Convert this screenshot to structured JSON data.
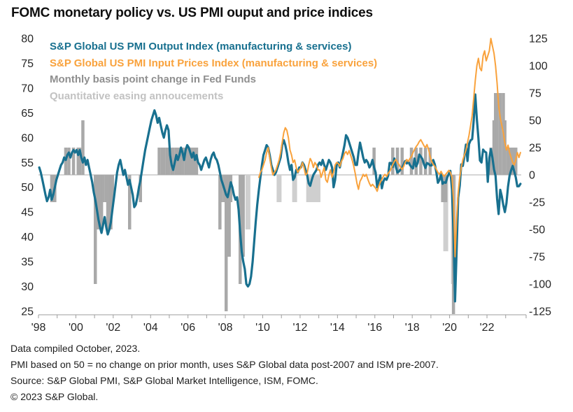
{
  "title": "FOMC monetary policy vs. US PMI ouput and price indices",
  "legend": [
    {
      "key": "pmi-output",
      "label": "S&P Global US PMI Output Index (manufacturing & services)",
      "color": "#18708F"
    },
    {
      "key": "pmi-input-prices",
      "label": "S&P Global US PMI Input Prices Index (manufacturing & services)",
      "color": "#F9A23C"
    },
    {
      "key": "fed-funds-change",
      "label": "Monthly basis point change in Fed Funds",
      "color": "#8F8F8F"
    },
    {
      "key": "qe-announcements",
      "label": "Quantitative easing annoucements",
      "color": "#C2C2C2"
    }
  ],
  "footer_lines": [
    "Data compiled October, 2023.",
    "PMI based on 50 = no change on prior month, uses S&P Global data post-2007 and ISM pre-2007.",
    "Source: S&P Global PMI, S&P Global Market Intelligence, ISM, FOMC.",
    "© 2023 S&P Global."
  ],
  "chart_data": {
    "type": "combo",
    "title": "FOMC monetary policy vs. US PMI ouput and price indices",
    "left_axis": {
      "min": 25,
      "max": 80,
      "ticks": [
        80,
        75,
        70,
        65,
        60,
        55,
        50,
        45,
        40,
        35,
        30,
        25
      ]
    },
    "right_axis": {
      "min": -125,
      "max": 125,
      "ticks": [
        125,
        100,
        75,
        50,
        25,
        0,
        -25,
        -50,
        -75,
        -100,
        -125
      ]
    },
    "x_axis": {
      "start_year": 1998,
      "end_year": 2023.83,
      "minor_tick_every_years": 1,
      "ticks": [
        {
          "label": "'98",
          "year": 1998
        },
        {
          "label": "'00",
          "year": 2000
        },
        {
          "label": "'02",
          "year": 2002
        },
        {
          "label": "'04",
          "year": 2004
        },
        {
          "label": "'06",
          "year": 2006
        },
        {
          "label": "'08",
          "year": 2008
        },
        {
          "label": "'10",
          "year": 2010
        },
        {
          "label": "'12",
          "year": 2012
        },
        {
          "label": "'14",
          "year": 2014
        },
        {
          "label": "'16",
          "year": 2016
        },
        {
          "label": "'18",
          "year": 2018
        },
        {
          "label": "'20",
          "year": 2020
        },
        {
          "label": "'22",
          "year": 2022
        }
      ]
    },
    "series": {
      "pmi_output": {
        "name": "S&P Global US PMI Output Index (manufacturing & services)",
        "kind": "line",
        "axis": "left",
        "color": "#18708F",
        "start": "1998-01",
        "values": [
          54.0,
          53.0,
          51.5,
          50.0,
          48.5,
          47.2,
          48.0,
          49.5,
          47.5,
          48.5,
          50.0,
          51.5,
          52.5,
          53.5,
          54.5,
          55.0,
          56.0,
          55.5,
          56.5,
          57.0,
          56.0,
          57.0,
          57.5,
          57.0,
          57.5,
          56.5,
          57.5,
          56.0,
          55.0,
          56.0,
          54.5,
          55.5,
          54.0,
          52.5,
          51.0,
          49.0,
          47.5,
          45.5,
          43.5,
          42.0,
          40.8,
          42.5,
          44.0,
          42.0,
          40.5,
          41.5,
          43.0,
          45.5,
          48.0,
          50.5,
          53.0,
          54.5,
          55.5,
          54.0,
          52.5,
          53.5,
          52.0,
          50.5,
          51.5,
          50.0,
          48.5,
          46.0,
          46.5,
          48.0,
          50.0,
          51.5,
          53.5,
          55.5,
          57.5,
          59.0,
          60.5,
          62.0,
          63.5,
          64.5,
          65.5,
          64.5,
          63.0,
          64.0,
          62.5,
          61.0,
          60.0,
          61.5,
          62.5,
          61.5,
          56.5,
          54.5,
          53.5,
          55.0,
          56.5,
          55.5,
          56.5,
          58.0,
          57.0,
          55.5,
          57.5,
          58.5,
          58.0,
          57.0,
          56.0,
          57.0,
          55.5,
          56.5,
          55.0,
          54.5,
          53.5,
          54.5,
          55.5,
          56.0,
          55.0,
          54.0,
          55.5,
          56.5,
          57.0,
          56.0,
          55.5,
          54.5,
          53.0,
          51.5,
          50.5,
          49.5,
          48.5,
          48.0,
          49.5,
          51.0,
          50.0,
          48.5,
          47.5,
          48.0,
          45.5,
          41.0,
          37.0,
          35.0,
          33.5,
          30.5,
          30.0,
          30.5,
          32.0,
          35.0,
          39.0,
          43.0,
          46.5,
          49.5,
          52.0,
          54.5,
          56.5,
          57.5,
          58.5,
          58.0,
          56.5,
          54.5,
          53.5,
          52.5,
          53.0,
          54.0,
          55.0,
          56.0,
          58.5,
          59.5,
          58.5,
          57.0,
          55.0,
          53.5,
          54.5,
          51.5,
          52.0,
          53.5,
          53.0,
          54.0,
          54.0,
          55.0,
          54.5,
          53.5,
          52.5,
          50.8,
          50.3,
          51.5,
          52.5,
          53.0,
          53.5,
          54.5,
          55.0,
          54.5,
          55.5,
          54.5,
          53.5,
          54.5,
          55.5,
          55.0,
          54.0,
          50.0,
          51.5,
          54.5,
          55.0,
          54.0,
          55.5,
          57.0,
          58.5,
          60.5,
          60.0,
          59.0,
          58.0,
          57.0,
          56.0,
          54.5,
          54.5,
          57.0,
          59.0,
          57.5,
          56.0,
          55.0,
          55.5,
          55.0,
          54.0,
          54.5,
          55.5,
          54.0,
          53.0,
          50.0,
          51.3,
          52.4,
          49.8,
          51.2,
          51.8,
          51.5,
          52.3,
          54.9,
          54.9,
          54.1,
          55.8,
          54.1,
          53.0,
          53.2,
          53.6,
          53.9,
          54.6,
          55.3,
          54.8,
          55.2,
          54.5,
          54.1,
          53.8,
          55.8,
          54.2,
          54.9,
          56.6,
          56.2,
          55.7,
          54.7,
          53.9,
          54.9,
          54.7,
          54.4,
          54.4,
          55.5,
          54.6,
          53.0,
          50.9,
          51.5,
          52.6,
          50.7,
          51.0,
          50.9,
          52.0,
          52.7,
          53.3,
          49.6,
          40.9,
          27.0,
          37.0,
          47.9,
          50.3,
          54.6,
          54.3,
          56.3,
          58.6,
          55.3,
          58.7,
          59.5,
          59.7,
          63.5,
          68.7,
          63.7,
          59.9,
          55.4,
          55.0,
          57.6,
          57.2,
          57.0,
          51.1,
          55.9,
          57.7,
          56.0,
          53.6,
          52.3,
          47.7,
          44.6,
          49.5,
          48.2,
          46.4,
          45.0,
          46.8,
          50.1,
          52.3,
          53.4,
          54.3,
          53.2,
          52.0,
          50.2,
          50.2,
          50.7
        ]
      },
      "pmi_input_prices": {
        "name": "S&P Global US PMI Input Prices Index (manufacturing & services)",
        "kind": "line",
        "axis": "left",
        "color": "#F9A23C",
        "start": "2009-10",
        "values": [
          52.0,
          53.0,
          53.5,
          54.5,
          55.5,
          57.0,
          58.0,
          56.0,
          54.0,
          52.5,
          53.0,
          53.5,
          54.5,
          55.5,
          57.0,
          59.0,
          61.0,
          62.0,
          61.5,
          60.0,
          57.5,
          56.5,
          55.0,
          55.5,
          54.0,
          53.0,
          53.5,
          54.0,
          55.0,
          54.0,
          52.5,
          52.8,
          54.5,
          55.8,
          55.2,
          54.0,
          55.0,
          54.5,
          53.5,
          53.5,
          52.0,
          53.0,
          54.0,
          51.5,
          51.0,
          52.5,
          53.5,
          52.0,
          53.0,
          54.5,
          55.0,
          54.8,
          54.2,
          55.2,
          55.8,
          56.8,
          57.2,
          56.6,
          57.4,
          56.4,
          55.4,
          54.2,
          52.6,
          50.8,
          49.6,
          51.2,
          51.8,
          52.6,
          52.2,
          52.6,
          51.6,
          50.8,
          50.2,
          50.6,
          50.2,
          49.8,
          49.2,
          50.2,
          51.0,
          51.6,
          52.2,
          52.6,
          52.2,
          52.8,
          53.2,
          53.8,
          54.6,
          55.2,
          55.6,
          55.0,
          54.6,
          54.0,
          53.6,
          54.2,
          55.0,
          55.6,
          55.2,
          55.8,
          56.2,
          57.0,
          57.6,
          58.2,
          58.6,
          59.2,
          59.6,
          59.0,
          58.4,
          58.0,
          58.6,
          57.6,
          56.2,
          55.2,
          54.6,
          54.2,
          53.6,
          53.0,
          52.6,
          53.2,
          52.6,
          52.2,
          52.6,
          53.0,
          53.4,
          53.0,
          52.0,
          47.5,
          36.0,
          43.5,
          49.0,
          52.0,
          54.0,
          55.5,
          56.5,
          57.5,
          59.0,
          60.5,
          62.5,
          64.5,
          68.0,
          71.5,
          74.5,
          76.0,
          74.0,
          73.5,
          76.5,
          77.5,
          75.5,
          76.5,
          77.5,
          80.0,
          78.5,
          77.0,
          74.5,
          71.0,
          66.5,
          64.0,
          62.5,
          61.0,
          59.0,
          57.5,
          58.5,
          57.0,
          56.0,
          55.0,
          54.5,
          55.5,
          57.0,
          56.0,
          57.0
        ]
      },
      "fed_funds_changes": {
        "name": "Monthly basis point change in Fed Funds",
        "kind": "bar",
        "axis": "right",
        "color": "#A9A9A9",
        "unit": "bp",
        "points": [
          [
            "1998-09",
            -25
          ],
          [
            "1998-10",
            -25
          ],
          [
            "1998-11",
            -25
          ],
          [
            "1999-06",
            25
          ],
          [
            "1999-08",
            25
          ],
          [
            "1999-11",
            25
          ],
          [
            "2000-02",
            25
          ],
          [
            "2000-03",
            25
          ],
          [
            "2000-05",
            50
          ],
          [
            "2001-01",
            -100
          ],
          [
            "2001-03",
            -50
          ],
          [
            "2001-04",
            -50
          ],
          [
            "2001-05",
            -50
          ],
          [
            "2001-06",
            -25
          ],
          [
            "2001-08",
            -25
          ],
          [
            "2001-09",
            -50
          ],
          [
            "2001-10",
            -50
          ],
          [
            "2001-11",
            -50
          ],
          [
            "2001-12",
            -25
          ],
          [
            "2002-11",
            -50
          ],
          [
            "2003-06",
            -25
          ],
          [
            "2004-06",
            25
          ],
          [
            "2004-08",
            25
          ],
          [
            "2004-09",
            25
          ],
          [
            "2004-11",
            25
          ],
          [
            "2004-12",
            25
          ],
          [
            "2005-02",
            25
          ],
          [
            "2005-03",
            25
          ],
          [
            "2005-05",
            25
          ],
          [
            "2005-06",
            25
          ],
          [
            "2005-08",
            25
          ],
          [
            "2005-09",
            25
          ],
          [
            "2005-11",
            25
          ],
          [
            "2005-12",
            25
          ],
          [
            "2006-01",
            25
          ],
          [
            "2006-03",
            25
          ],
          [
            "2006-05",
            25
          ],
          [
            "2006-06",
            25
          ],
          [
            "2007-09",
            -50
          ],
          [
            "2007-10",
            -25
          ],
          [
            "2007-12",
            -25
          ],
          [
            "2008-01",
            -125
          ],
          [
            "2008-03",
            -75
          ],
          [
            "2008-04",
            -25
          ],
          [
            "2008-10",
            -100
          ],
          [
            "2008-12",
            -75
          ],
          [
            "2015-12",
            25
          ],
          [
            "2016-12",
            25
          ],
          [
            "2017-03",
            25
          ],
          [
            "2017-06",
            25
          ],
          [
            "2017-12",
            25
          ],
          [
            "2018-03",
            25
          ],
          [
            "2018-06",
            25
          ],
          [
            "2018-09",
            25
          ],
          [
            "2018-12",
            25
          ],
          [
            "2019-08",
            -25
          ],
          [
            "2019-09",
            -25
          ],
          [
            "2019-10",
            -25
          ],
          [
            "2020-03",
            -150
          ],
          [
            "2022-03",
            25
          ],
          [
            "2022-05",
            50
          ],
          [
            "2022-06",
            75
          ],
          [
            "2022-07",
            75
          ],
          [
            "2022-09",
            75
          ],
          [
            "2022-11",
            75
          ],
          [
            "2022-12",
            50
          ],
          [
            "2023-02",
            25
          ],
          [
            "2023-03",
            25
          ],
          [
            "2023-05",
            25
          ],
          [
            "2023-07",
            25
          ]
        ]
      },
      "qe_announcements": {
        "name": "Quantitative easing annoucements",
        "kind": "bar",
        "axis": "right",
        "color": "#CFCFCF",
        "unit": "bp-equivalent",
        "points": [
          [
            "2008-11",
            -50
          ],
          [
            "2009-03",
            -50
          ],
          [
            "2010-11",
            -25
          ],
          [
            "2011-09",
            -25
          ],
          [
            "2012-06",
            -25
          ],
          [
            "2012-09",
            -25
          ],
          [
            "2012-12",
            -25
          ],
          [
            "2019-10",
            -70
          ],
          [
            "2020-03",
            -100
          ]
        ]
      }
    }
  }
}
